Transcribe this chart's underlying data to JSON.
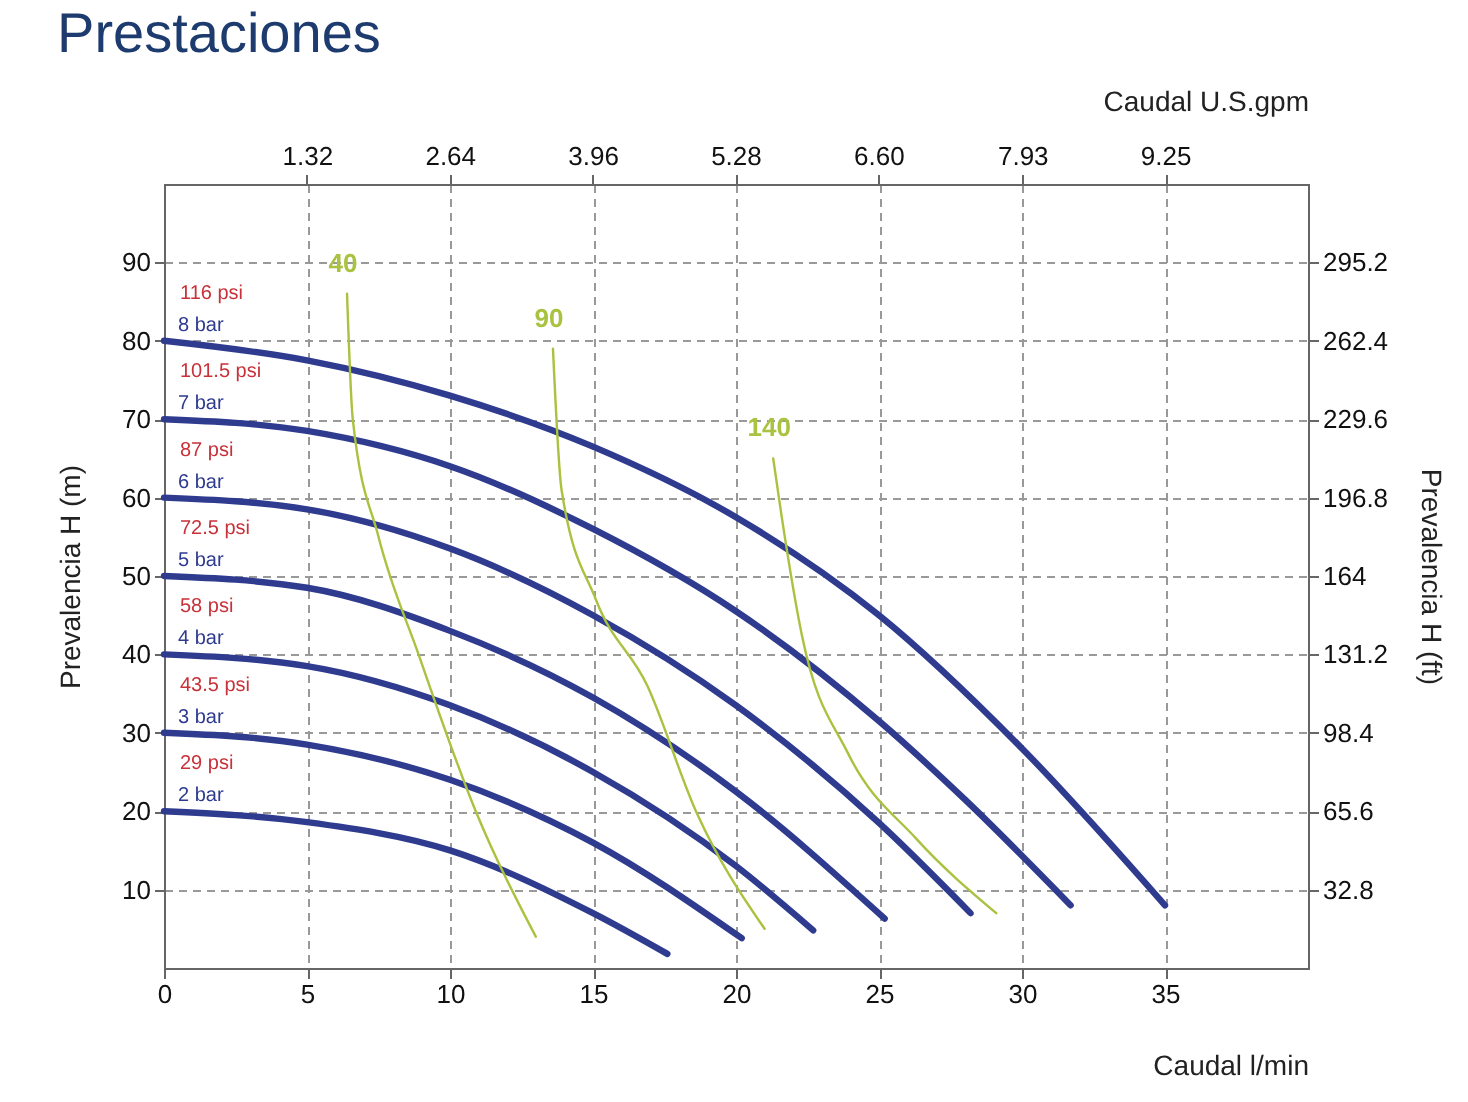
{
  "chart_data": {
    "type": "line",
    "title": "Prestaciones",
    "xlabel": "Caudal l/min",
    "ylabel": "Prevalencia H (m)",
    "y2label": "Prevalencia H (ft)",
    "x2label": "Caudal U.S.gpm",
    "xlim": [
      0,
      40
    ],
    "xticks": [
      0,
      5,
      10,
      15,
      20,
      25,
      30,
      35
    ],
    "ylim": [
      0,
      100
    ],
    "yticks": [
      10,
      20,
      30,
      40,
      50,
      60,
      70,
      80,
      90
    ],
    "y2lim": [
      0,
      328
    ],
    "y2ticks": [
      32.8,
      65.6,
      98.4,
      131.2,
      164,
      196.8,
      229.6,
      262.4,
      295.2
    ],
    "x2lim": [
      0,
      10.57
    ],
    "x2ticks": [
      1.32,
      2.64,
      3.96,
      5.28,
      {
        "value": 6.6,
        "label": "6.60"
      },
      7.93,
      9.25
    ],
    "grid": true,
    "marker": "none",
    "line_style": "solid",
    "series": [
      {
        "name": "8 bar",
        "color": "#2f3b8f",
        "x": [
          0,
          5,
          10,
          15,
          20,
          25,
          30,
          35
        ],
        "values": [
          80,
          77.5,
          73,
          66.5,
          57.5,
          45,
          28,
          8
        ]
      },
      {
        "name": "7 bar",
        "color": "#2f3b8f",
        "x": [
          0,
          5,
          10,
          15,
          20,
          25,
          28,
          31.7
        ],
        "values": [
          70,
          68.5,
          64,
          56,
          45.5,
          31.5,
          21.5,
          8
        ]
      },
      {
        "name": "6 bar",
        "color": "#2f3b8f",
        "x": [
          0,
          5,
          10,
          15,
          20,
          25,
          28.2
        ],
        "values": [
          60,
          58.5,
          53.5,
          45,
          33.5,
          18.5,
          7
        ]
      },
      {
        "name": "5 bar",
        "color": "#2f3b8f",
        "x": [
          0,
          5,
          10,
          15,
          20,
          25.2
        ],
        "values": [
          50,
          48.5,
          43,
          34.5,
          22.5,
          6.3
        ]
      },
      {
        "name": "4 bar",
        "color": "#2f3b8f",
        "x": [
          0,
          5,
          10,
          15,
          20,
          22.7
        ],
        "values": [
          40,
          38.5,
          33.5,
          25,
          13,
          4.8
        ]
      },
      {
        "name": "3 bar",
        "color": "#2f3b8f",
        "x": [
          0,
          5,
          10,
          15,
          20.2
        ],
        "values": [
          30,
          28.5,
          24,
          16,
          3.8
        ]
      },
      {
        "name": "2 bar",
        "color": "#2f3b8f",
        "x": [
          0,
          5,
          10,
          15,
          17.6
        ],
        "values": [
          20,
          18.6,
          15,
          7,
          1.8
        ]
      },
      {
        "name": "40",
        "color": "#a9c23f",
        "x": [
          6.4,
          6.6,
          7.5,
          8.9,
          10.9,
          13.0
        ],
        "values": [
          86,
          70,
          55,
          40,
          20,
          4
        ]
      },
      {
        "name": "90",
        "color": "#a9c23f",
        "x": [
          13.6,
          13.9,
          15.1,
          16.9,
          18.6,
          21.0
        ],
        "values": [
          79,
          61,
          47,
          36,
          20,
          5
        ]
      },
      {
        "name": "140",
        "color": "#a9c23f",
        "x": [
          21.3,
          21.6,
          22.3,
          23.9,
          26.3,
          29.1
        ],
        "values": [
          65,
          57.5,
          42.5,
          27.5,
          16.5,
          7
        ]
      }
    ],
    "annotations": [
      "116 psi",
      "101.5 psi",
      "87 psi",
      "72.5 psi",
      "58 psi",
      "43.5 psi",
      "29 psi"
    ]
  }
}
